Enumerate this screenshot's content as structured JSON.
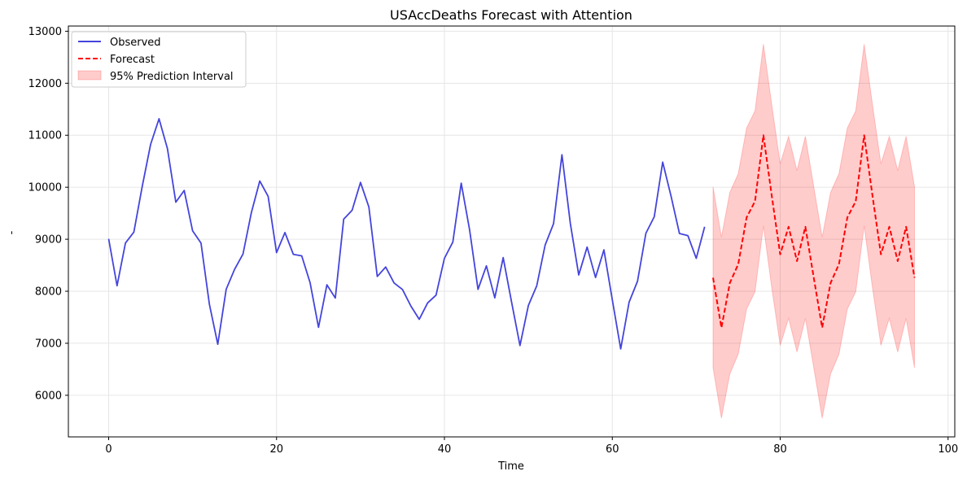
{
  "chart_data": {
    "type": "line",
    "title": "USAccDeaths Forecast with Attention",
    "xlabel": "Time",
    "ylabel": "-",
    "xlim": [
      -4.8,
      100.8
    ],
    "ylim": [
      5200,
      13100
    ],
    "xticks": [
      0,
      20,
      40,
      60,
      80,
      100
    ],
    "yticks": [
      6000,
      7000,
      8000,
      9000,
      10000,
      11000,
      12000,
      13000
    ],
    "grid": true,
    "legend_position": "top-left",
    "series": [
      {
        "name": "Observed",
        "color": "#4444dd",
        "style": "solid",
        "x_start": 0,
        "values": [
          9007,
          8106,
          8928,
          9137,
          10017,
          10826,
          11317,
          10744,
          9713,
          9938,
          9161,
          8927,
          7750,
          6981,
          8038,
          8422,
          8714,
          9512,
          10120,
          9823,
          8743,
          9129,
          8710,
          8680,
          8162,
          7306,
          8124,
          7870,
          9387,
          9556,
          10093,
          9620,
          8285,
          8466,
          8160,
          8034,
          7717,
          7461,
          7776,
          7925,
          8634,
          8945,
          10078,
          9179,
          8037,
          8488,
          7874,
          8647,
          7792,
          6957,
          7726,
          8106,
          8890,
          9299,
          10625,
          9302,
          8314,
          8850,
          8265,
          8796,
          7836,
          6892,
          7791,
          8192,
          9115,
          9434,
          10484,
          9827,
          9110,
          9070,
          8633,
          9240
        ]
      },
      {
        "name": "Forecast",
        "color": "#ff0000",
        "style": "dashed",
        "x_start": 72,
        "values": [
          8260,
          7300,
          8160,
          8520,
          9420,
          9730,
          11000,
          9830,
          8710,
          9240,
          8580,
          9240,
          8260,
          7300,
          8160,
          8520,
          9420,
          9730,
          11000,
          9830,
          8710,
          9240,
          8580,
          9240,
          8260
        ]
      }
    ],
    "interval": {
      "name": "95% Prediction Interval",
      "color": "#ff0000",
      "opacity": 0.2,
      "x_start": 72,
      "lower": [
        6530,
        5560,
        6410,
        6790,
        7660,
        7990,
        9260,
        8060,
        6960,
        7480,
        6830,
        7480,
        6530,
        5560,
        6410,
        6790,
        7660,
        7990,
        9260,
        8060,
        6960,
        7480,
        6830,
        7480,
        6530
      ],
      "upper": [
        10010,
        9040,
        9900,
        10260,
        11140,
        11470,
        12750,
        11580,
        10450,
        10980,
        10320,
        10980,
        10010,
        9040,
        9900,
        10260,
        11140,
        11470,
        12750,
        11580,
        10450,
        10980,
        10320,
        10980,
        10010
      ]
    }
  }
}
